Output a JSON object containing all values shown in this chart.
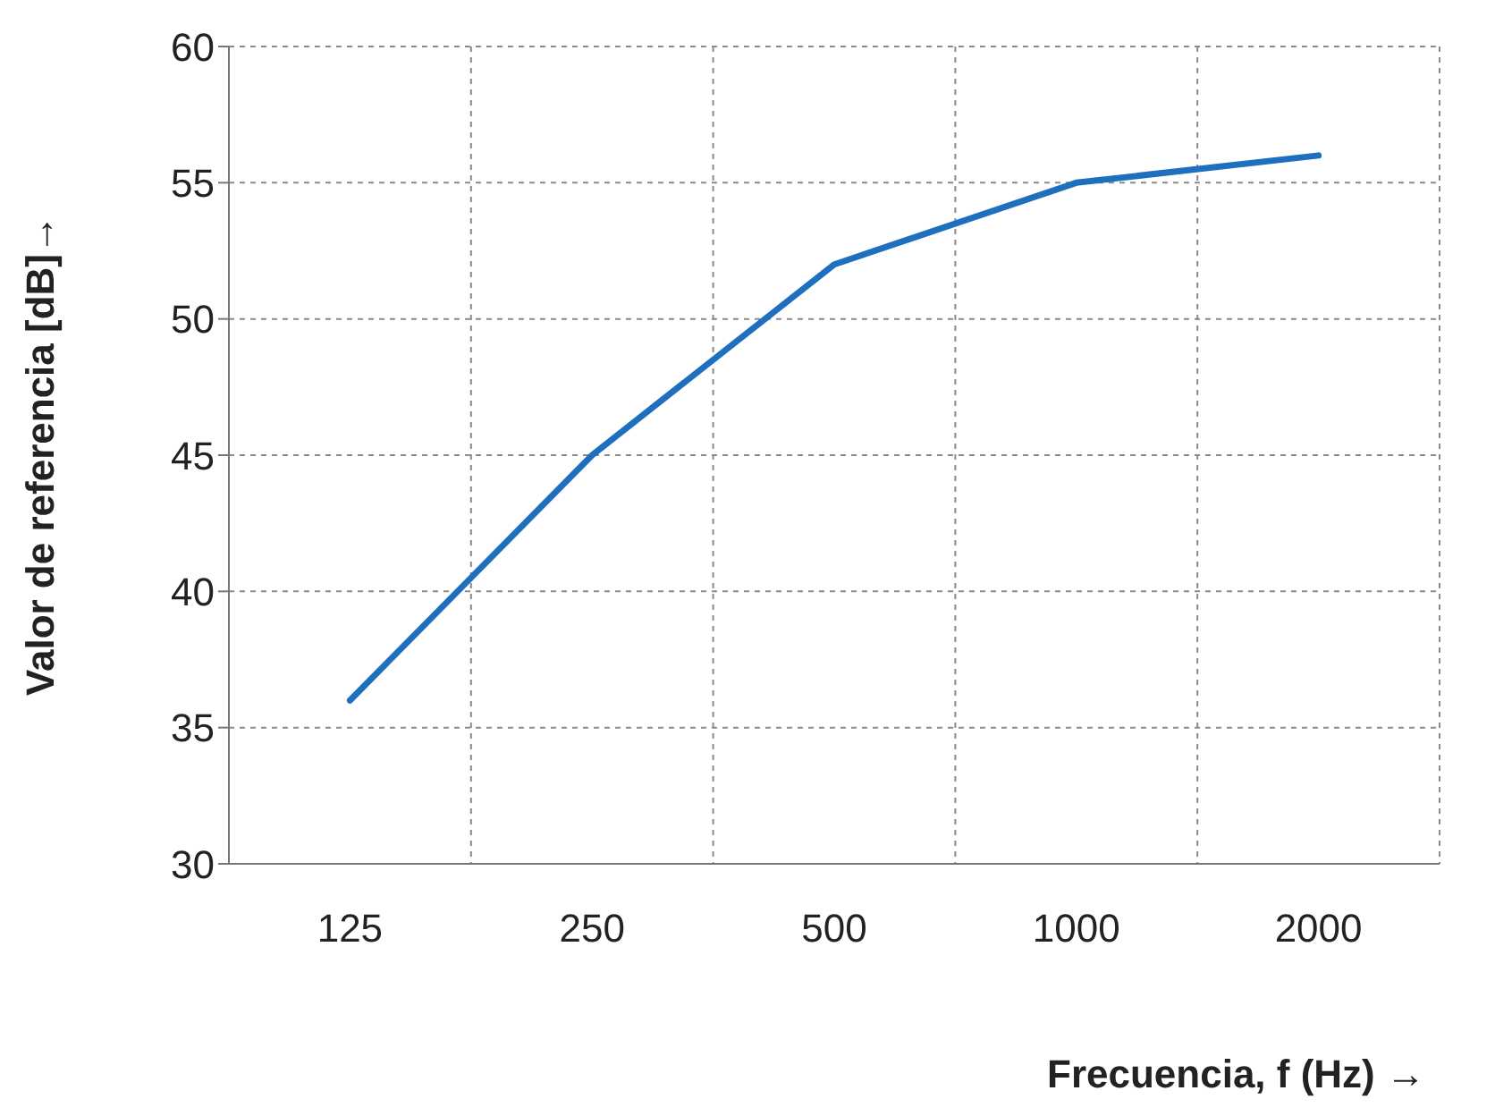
{
  "chart_data": {
    "type": "line",
    "xlabel": "Frecuencia, f (Hz) →",
    "ylabel": "Valor de referencia [dB]→",
    "categories": [
      "125",
      "250",
      "500",
      "1000",
      "2000"
    ],
    "series": [
      {
        "color": "#1f6fbf",
        "values": [
          36,
          45,
          52,
          55,
          56
        ]
      }
    ],
    "ylim": [
      30,
      60
    ],
    "yticks": [
      30,
      35,
      40,
      45,
      50,
      55,
      60
    ],
    "grid": true,
    "marker": "none",
    "line_style": "solid"
  }
}
